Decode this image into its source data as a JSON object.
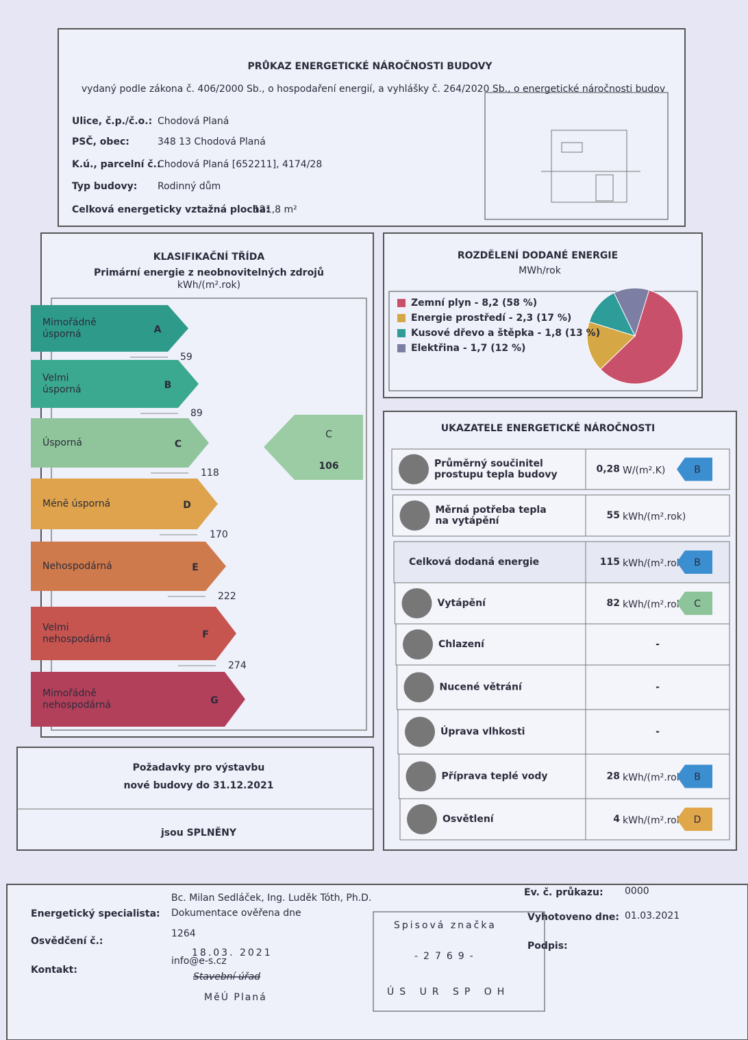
{
  "header": {
    "title": "PRŮKAZ ENERGETICKÉ NÁROČNOSTI BUDOVY",
    "subtitle": "vydaný podle zákona č. 406/2000 Sb., o hospodaření energií, a vyhlášky č. 264/2020 Sb., o energetické náročnosti budov"
  },
  "building": [
    {
      "label": "Ulice, č.p./č.o.:",
      "value": "Chodová Planá"
    },
    {
      "label": "PSČ, obec:",
      "value": "348 13 Chodová Planá"
    },
    {
      "label": "K.ú., parcelní č.:",
      "value": "Chodová Planá [652211], 4174/28"
    },
    {
      "label": "Typ budovy:",
      "value": "Rodinný dům"
    },
    {
      "label": "Celková energeticky vztažná plocha:",
      "value": "121,8 m²"
    }
  ],
  "classification": {
    "title": "KLASIFIKAČNÍ TŘÍDA",
    "subtitle": "Primární energie z neobnovitelných zdrojů",
    "unit": "kWh/(m².rok)",
    "classes": [
      {
        "name": [
          "Mimořádně",
          "úsporná"
        ],
        "letter": "A"
      },
      {
        "name": [
          "Velmi",
          "úsporná"
        ],
        "letter": "B"
      },
      {
        "name": [
          "Úsporná"
        ],
        "letter": "C"
      },
      {
        "name": [
          "Méně úsporná"
        ],
        "letter": "D"
      },
      {
        "name": [
          "Nehospodárná"
        ],
        "letter": "E"
      },
      {
        "name": [
          "Velmi",
          "nehospodárná"
        ],
        "letter": "F"
      },
      {
        "name": [
          "Mimořádně",
          "nehospodárná"
        ],
        "letter": "G"
      }
    ],
    "thresholds": [
      "59",
      "89",
      "118",
      "170",
      "222",
      "274"
    ],
    "result": {
      "letter": "C",
      "value": "106"
    }
  },
  "requirements": {
    "text": [
      "Požadavky pro výstavbu",
      "nové budovy do 31.12.2021"
    ],
    "result": "jsou SPLNĚNY"
  },
  "energy_split": {
    "title": "ROZDĚLENÍ DODANÉ ENERGIE",
    "unit": "MWh/rok",
    "items": [
      {
        "label": "Zemní plyn - 8,2 (58 %)",
        "share": 58,
        "color": "#c9506a"
      },
      {
        "label": "Energie prostředí - 2,3 (17 %)",
        "share": 17,
        "color": "#d6a845"
      },
      {
        "label": "Kusové dřevo a štěpka - 1,8 (13 %)",
        "share": 13,
        "color": "#2e9c98"
      },
      {
        "label": "Elektřina - 1,7 (12 %)",
        "share": 12,
        "color": "#7c7fa3"
      }
    ]
  },
  "indicators": {
    "title": "UKAZATELE ENERGETICKÉ NÁROČNOSTI",
    "rows": [
      {
        "label": [
          "Průměrný součinitel",
          "prostupu tepla budovy"
        ],
        "value": "0,28",
        "unit": "W/(m².K)",
        "class": "B"
      },
      {
        "label": [
          "Měrná potřeba tepla",
          "na vytápění"
        ],
        "value": "55",
        "unit": "kWh/(m².rok)"
      },
      {
        "label": [
          "Celková dodaná energie"
        ],
        "value": "115",
        "unit": "kWh/(m².rok)",
        "class": "B"
      },
      {
        "label": [
          "Vytápění"
        ],
        "value": "82",
        "unit": "kWh/(m².rok)",
        "class": "C"
      },
      {
        "label": [
          "Chlazení"
        ],
        "value": "-"
      },
      {
        "label": [
          "Nucené větrání"
        ],
        "value": "-"
      },
      {
        "label": [
          "Úprava vlhkosti"
        ],
        "value": "-"
      },
      {
        "label": [
          "Příprava teplé vody"
        ],
        "value": "28",
        "unit": "kWh/(m².rok)",
        "class": "B"
      },
      {
        "label": [
          "Osvětlení"
        ],
        "value": "4",
        "unit": "kWh/(m².rok)",
        "class": "D"
      }
    ]
  },
  "footer": {
    "specialist": {
      "label": "Energetický specialista:",
      "value": "Bc. Milan Sedláček, Ing. Luděk Tóth, Ph.D."
    },
    "certificate": {
      "label": "Osvědčení č.:",
      "value": "1264"
    },
    "contact": {
      "label": "Kontakt:",
      "value": "info@e-s.cz"
    },
    "ev_number": {
      "label": "Ev. č. průkazu:",
      "value": "0000"
    },
    "date": {
      "label": "Vyhotoveno dne:",
      "value": "01.03.2021"
    },
    "signature": {
      "label": "Podpis:"
    }
  },
  "stamps": {
    "verified": "Dokumentace ověřena dne",
    "verified_date": "18.03. 2021",
    "office": "Stavební úřad",
    "town": "MěÚ Planá",
    "file_label": "Spisová značka",
    "file_number": "-2769-",
    "codes": "ÚS UR SP OH"
  }
}
